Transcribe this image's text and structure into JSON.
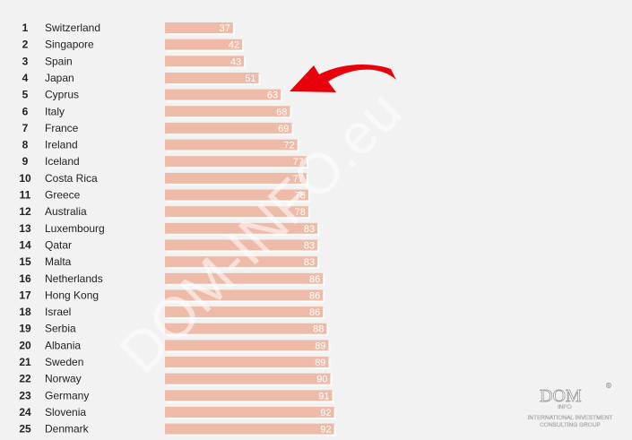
{
  "chart_data": {
    "type": "bar",
    "orientation": "horizontal",
    "ranks": [
      "1",
      "2",
      "3",
      "4",
      "5",
      "6",
      "7",
      "8",
      "9",
      "10",
      "11",
      "12",
      "13",
      "14",
      "15",
      "16",
      "17",
      "18",
      "19",
      "20",
      "21",
      "22",
      "23",
      "24",
      "25"
    ],
    "categories": [
      "Switzerland",
      "Singapore",
      "Spain",
      "Japan",
      "Cyprus",
      "Italy",
      "France",
      "Ireland",
      "Iceland",
      "Costa Rica",
      "Greece",
      "Australia",
      "Luxembourg",
      "Qatar",
      "Malta",
      "Netherlands",
      "Hong Kong",
      "Israel",
      "Serbia",
      "Albania",
      "Sweden",
      "Norway",
      "Germany",
      "Slovenia",
      "Denmark"
    ],
    "values": [
      37,
      42,
      43,
      51,
      63,
      68,
      69,
      72,
      77,
      77,
      78,
      78,
      83,
      83,
      83,
      86,
      86,
      86,
      88,
      89,
      89,
      90,
      91,
      92,
      92
    ],
    "value_labels": [
      "37",
      "42",
      "43",
      "51",
      "63",
      "68",
      "69",
      "72",
      "77",
      "77",
      "78",
      "78",
      "83",
      "83",
      "83",
      "86",
      "86",
      "86",
      "88",
      "89",
      "89",
      "90",
      "91",
      "92",
      "92"
    ],
    "highlighted_category": "Cyprus",
    "bar_color": "#eebba8",
    "annotation_arrow_color": "#e8000b",
    "grid": false,
    "legend": "none"
  },
  "watermark": {
    "text": "DOM-INFO.eu"
  },
  "logo": {
    "title": "DOM",
    "sub": "INFO",
    "mark": "®",
    "line1": "INTERNATIONAL INVESTMENT",
    "line2": "CONSULTING GROUP"
  }
}
